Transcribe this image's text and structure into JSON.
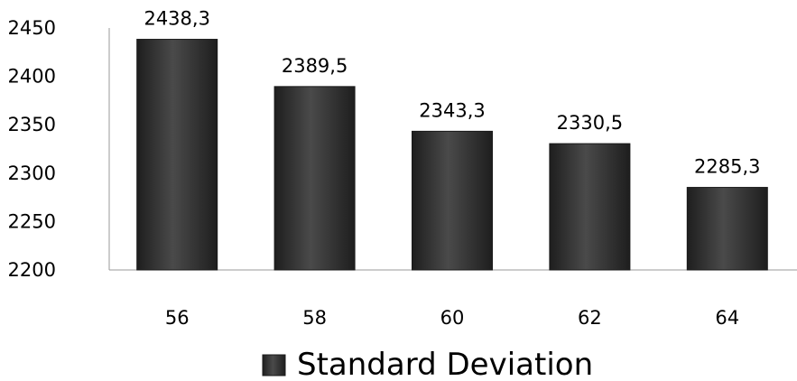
{
  "chart_data": {
    "type": "bar",
    "categories": [
      "56",
      "58",
      "60",
      "62",
      "64"
    ],
    "series": [
      {
        "name": "Standard Deviation",
        "values": [
          2438.3,
          2389.5,
          2343.3,
          2330.5,
          2285.3
        ],
        "labels": [
          "2438,3",
          "2389,5",
          "2343,3",
          "2330,5",
          "2285,3"
        ]
      }
    ],
    "ylim": [
      2200,
      2450
    ],
    "yticks": [
      2200,
      2250,
      2300,
      2350,
      2400,
      2450
    ],
    "ytick_labels": [
      "2200",
      "2250",
      "2300",
      "2350",
      "2400",
      "2450"
    ],
    "grid": false,
    "legend_position": "bottom",
    "colors": {
      "bar_dark": "#262626",
      "bar_mid": "#4a4a4a",
      "bar_edge": "#1a1a1a",
      "axis": "#9a9a9a"
    }
  }
}
